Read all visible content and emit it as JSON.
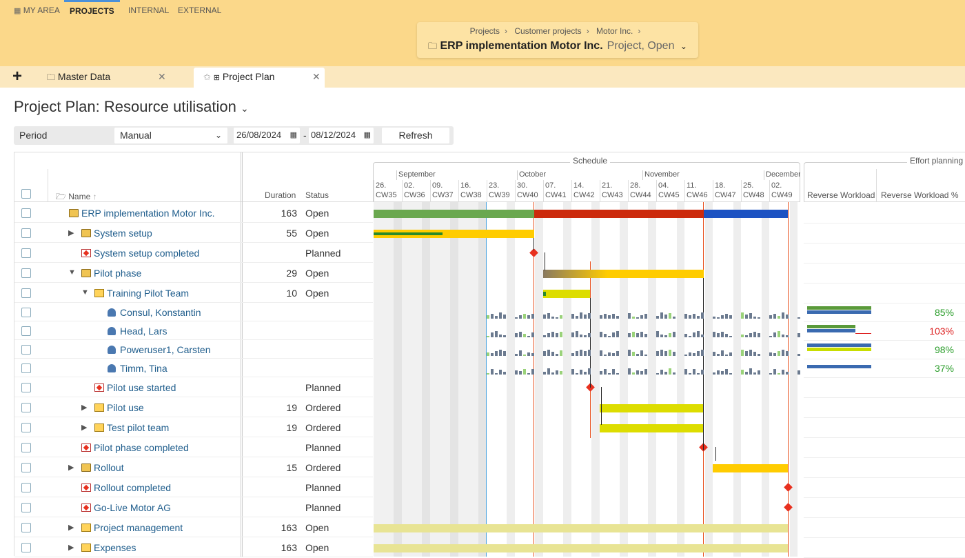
{
  "top_nav": {
    "my_area": "MY AREA",
    "projects": "PROJECTS",
    "internal": "INTERNAL",
    "external": "EXTERNAL"
  },
  "breadcrumb": {
    "items": [
      "Projects",
      "Customer projects",
      "Motor Inc."
    ],
    "title": "ERP implementation Motor Inc.",
    "subtitle": "Project, Open"
  },
  "doc_tabs": {
    "master": "Master Data",
    "plan": "Project Plan"
  },
  "page": {
    "title": "Project Plan: Resource utilisation"
  },
  "toolbar": {
    "period_label": "Period",
    "period_value": "Manual",
    "date_from": "26/08/2024",
    "date_sep": "-",
    "date_to": "08/12/2024",
    "refresh": "Refresh"
  },
  "columns": {
    "name": "Name",
    "duration": "Duration",
    "status": "Status",
    "schedule": "Schedule",
    "effort": "Effort planning",
    "reverse_workload": "Reverse Workload",
    "reverse_workload_pct": "Reverse Workload %"
  },
  "months": [
    "September",
    "October",
    "November",
    "December"
  ],
  "weeks": [
    [
      "26.",
      "CW35"
    ],
    [
      "02.",
      "CW36"
    ],
    [
      "09.",
      "CW37"
    ],
    [
      "16.",
      "CW38"
    ],
    [
      "23.",
      "CW39"
    ],
    [
      "30.",
      "CW40"
    ],
    [
      "07.",
      "CW41"
    ],
    [
      "14.",
      "CW42"
    ],
    [
      "21.",
      "CW43"
    ],
    [
      "28.",
      "CW44"
    ],
    [
      "04.",
      "CW45"
    ],
    [
      "11.",
      "CW46"
    ],
    [
      "18.",
      "CW47"
    ],
    [
      "25.",
      "CW48"
    ],
    [
      "02.",
      "CW49"
    ]
  ],
  "rows": [
    {
      "name": "ERP implementation Motor Inc.",
      "duration": "163",
      "status": "Open",
      "level": 0,
      "icon": "folder-icon",
      "expand": ""
    },
    {
      "name": "System setup",
      "duration": "55",
      "status": "Open",
      "level": 1,
      "icon": "folder-icon",
      "expand": "right"
    },
    {
      "name": "System setup completed",
      "duration": "",
      "status": "Planned",
      "level": 1,
      "icon": "milestone-icon",
      "expand": ""
    },
    {
      "name": "Pilot phase",
      "duration": "29",
      "status": "Open",
      "level": 1,
      "icon": "folder-icon",
      "expand": "down"
    },
    {
      "name": "Training Pilot Team",
      "duration": "10",
      "status": "Open",
      "level": 2,
      "icon": "task-icon",
      "expand": "down"
    },
    {
      "name": "Consul, Konstantin",
      "duration": "",
      "status": "",
      "level": 3,
      "icon": "person-icon",
      "expand": "",
      "workload": "85%",
      "wlcolor": "#2a9d2a"
    },
    {
      "name": "Head, Lars",
      "duration": "",
      "status": "",
      "level": 3,
      "icon": "person-icon",
      "expand": "",
      "workload": "103%",
      "wlcolor": "#d22"
    },
    {
      "name": "Poweruser1, Carsten",
      "duration": "",
      "status": "",
      "level": 3,
      "icon": "person-icon",
      "expand": "",
      "workload": "98%",
      "wlcolor": "#2a9d2a"
    },
    {
      "name": "Timm, Tina",
      "duration": "",
      "status": "",
      "level": 3,
      "icon": "person-icon",
      "expand": "",
      "workload": "37%",
      "wlcolor": "#2a9d2a"
    },
    {
      "name": "Pilot use started",
      "duration": "",
      "status": "Planned",
      "level": 2,
      "icon": "milestone-icon",
      "expand": ""
    },
    {
      "name": "Pilot use",
      "duration": "19",
      "status": "Ordered",
      "level": 2,
      "icon": "task-icon",
      "expand": "right"
    },
    {
      "name": "Test pilot team",
      "duration": "19",
      "status": "Ordered",
      "level": 2,
      "icon": "task-icon",
      "expand": "right"
    },
    {
      "name": "Pilot phase completed",
      "duration": "",
      "status": "Planned",
      "level": 1,
      "icon": "milestone-icon",
      "expand": ""
    },
    {
      "name": "Rollout",
      "duration": "15",
      "status": "Ordered",
      "level": 1,
      "icon": "folder-icon",
      "expand": "right"
    },
    {
      "name": "Rollout completed",
      "duration": "",
      "status": "Planned",
      "level": 1,
      "icon": "milestone-icon",
      "expand": ""
    },
    {
      "name": "Go-Live Motor AG",
      "duration": "",
      "status": "Planned",
      "level": 1,
      "icon": "milestone-icon",
      "expand": ""
    },
    {
      "name": "Project management",
      "duration": "163",
      "status": "Open",
      "level": 1,
      "icon": "task-icon",
      "expand": "right"
    },
    {
      "name": "Expenses",
      "duration": "163",
      "status": "Open",
      "level": 1,
      "icon": "task-icon",
      "expand": "right"
    }
  ]
}
